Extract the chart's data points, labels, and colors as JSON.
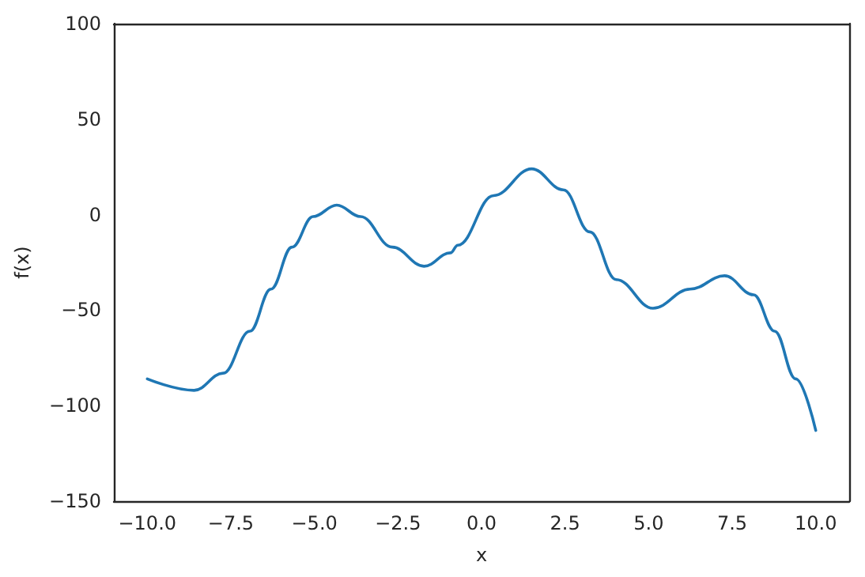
{
  "chart_data": {
    "type": "line",
    "xlabel": "x",
    "ylabel": "f(x)",
    "x": [
      -10,
      -8.6,
      -7.73,
      -6.93,
      -6.3,
      -5.67,
      -5.04,
      -4.33,
      -3.62,
      -2.67,
      -1.72,
      -0.93,
      -0.71,
      0.36,
      1.5,
      2.45,
      3.24,
      4.03,
      5.13,
      6.24,
      7.27,
      8.14,
      8.77,
      9.4,
      10
    ],
    "series": [
      {
        "color": "#1f77b4",
        "values": [
          -86,
          -92,
          -83,
          -61,
          -39,
          -17,
          -1,
          5,
          -1,
          -17,
          -27,
          -20,
          -16,
          10,
          24,
          13,
          -9,
          -34,
          -49,
          -39,
          -32,
          -42,
          -61,
          -86,
          -113
        ]
      }
    ],
    "xlim": [
      -11,
      11
    ],
    "xticks": [
      {
        "value": -10,
        "label": "−10.0"
      },
      {
        "value": -7.5,
        "label": "−7.5"
      },
      {
        "value": -5,
        "label": "−5.0"
      },
      {
        "value": -2.5,
        "label": "−2.5"
      },
      {
        "value": 0,
        "label": "0.0"
      },
      {
        "value": 2.5,
        "label": "2.5"
      },
      {
        "value": 5,
        "label": "5.0"
      },
      {
        "value": 7.5,
        "label": "7.5"
      },
      {
        "value": 10,
        "label": "10.0"
      }
    ],
    "ylim": [
      -150,
      100
    ],
    "yticks": [
      {
        "value": -150,
        "label": "−150"
      },
      {
        "value": -100,
        "label": "−100"
      },
      {
        "value": -50,
        "label": "−50"
      },
      0,
      50,
      100
    ],
    "grid": false,
    "marker": "none",
    "line_style": "solid"
  }
}
